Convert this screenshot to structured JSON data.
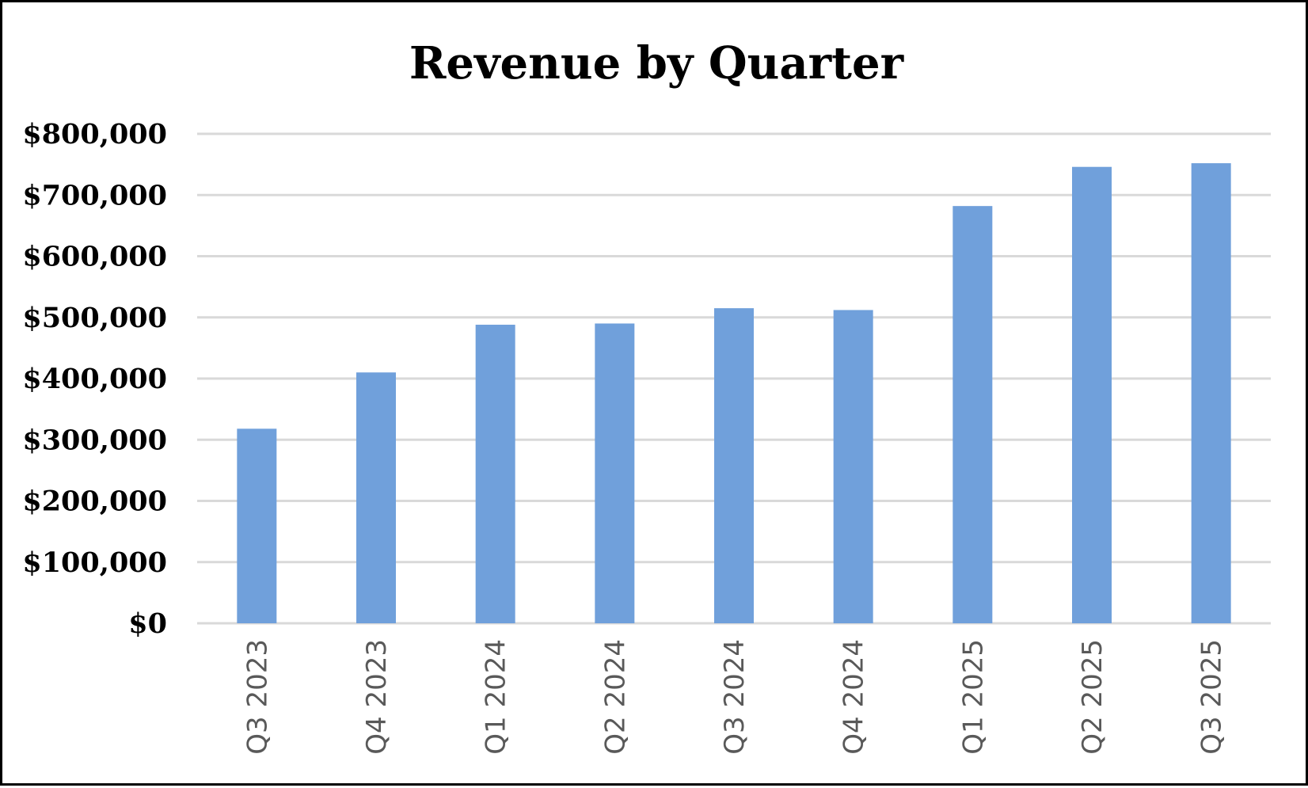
{
  "chart_data": {
    "type": "bar",
    "title": "Revenue by Quarter",
    "xlabel": "",
    "ylabel": "",
    "categories": [
      "Q3 2023",
      "Q4 2023",
      "Q1 2024",
      "Q2 2024",
      "Q3 2024",
      "Q4 2024",
      "Q1 2025",
      "Q2 2025",
      "Q3 2025"
    ],
    "values": [
      318000,
      410000,
      488000,
      490000,
      515000,
      512000,
      682000,
      746000,
      752000
    ],
    "ylim": [
      0,
      800000
    ],
    "yticks": [
      0,
      100000,
      200000,
      300000,
      400000,
      500000,
      600000,
      700000,
      800000
    ],
    "ytick_labels": [
      "$0",
      "$100,000",
      "$200,000",
      "$300,000",
      "$400,000",
      "$500,000",
      "$600,000",
      "$700,000",
      "$800,000"
    ],
    "grid": true,
    "legend": "none",
    "bar_color": "#70a0db"
  }
}
